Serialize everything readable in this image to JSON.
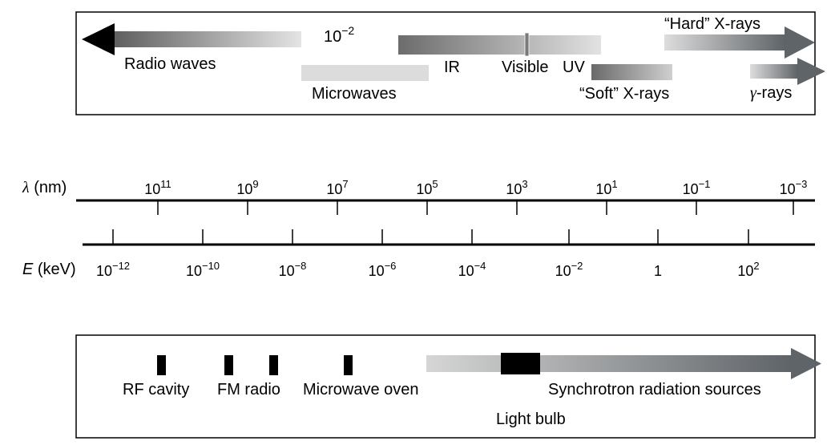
{
  "bands": {
    "radio": "Radio waves",
    "micro": "Microwaves",
    "ir": "IR",
    "visible": "Visible",
    "uv": "UV",
    "soft": "“Soft” X-rays",
    "hard": "“Hard” X-rays",
    "gamma_sym": "γ",
    "gamma_suffix": "-rays",
    "annot_base": "10",
    "annot_exp": "−2"
  },
  "wavelength_axis": {
    "sym": "λ",
    "unit": " (nm)",
    "ticks": [
      {
        "base": "10",
        "exp": "11"
      },
      {
        "base": "10",
        "exp": "9"
      },
      {
        "base": "10",
        "exp": "7"
      },
      {
        "base": "10",
        "exp": "5"
      },
      {
        "base": "10",
        "exp": "3"
      },
      {
        "base": "10",
        "exp": "1"
      },
      {
        "base": "10",
        "exp": "−1"
      },
      {
        "base": "10",
        "exp": "−3"
      }
    ]
  },
  "energy_axis": {
    "sym": "E",
    "unit": " (keV)",
    "ticks": [
      {
        "base": "10",
        "exp": "−12"
      },
      {
        "base": "10",
        "exp": "−10"
      },
      {
        "base": "10",
        "exp": "−8"
      },
      {
        "base": "10",
        "exp": "−6"
      },
      {
        "base": "10",
        "exp": "−4"
      },
      {
        "base": "10",
        "exp": "−2"
      },
      {
        "base": "1",
        "exp": ""
      },
      {
        "base": "10",
        "exp": "2"
      }
    ]
  },
  "sources": {
    "rf": "RF cavity",
    "fm": "FM radio",
    "oven": "Microwave oven",
    "sync": "Synchrotron radiation sources",
    "bulb": "Light bulb"
  }
}
